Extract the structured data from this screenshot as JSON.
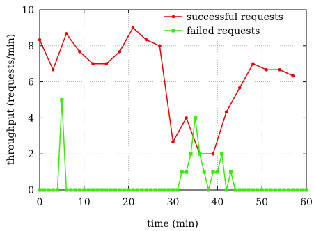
{
  "chart_data": {
    "type": "line",
    "xlabel": "time (min)",
    "ylabel": "throughput (requests/min)",
    "xlim": [
      0,
      60
    ],
    "ylim": [
      0,
      10
    ],
    "xticks": [
      0,
      10,
      20,
      30,
      40,
      50,
      60
    ],
    "yticks": [
      0,
      2,
      4,
      6,
      8,
      10
    ],
    "grid": true,
    "legend_position": "top-right",
    "series": [
      {
        "name": "successful requests",
        "color": "#e60000",
        "marker": "dot",
        "x": [
          0,
          3,
          6,
          9,
          12,
          15,
          18,
          21,
          24,
          27,
          30,
          33,
          36,
          39,
          42,
          45,
          48,
          51,
          54,
          57
        ],
        "y": [
          8.33,
          6.67,
          8.67,
          7.67,
          7.0,
          7.0,
          7.67,
          9.0,
          8.33,
          8.0,
          2.67,
          4.0,
          2.0,
          2.0,
          4.33,
          5.67,
          7.0,
          6.67,
          6.67,
          6.33
        ]
      },
      {
        "name": "failed requests",
        "color": "#33ee00",
        "marker": "square",
        "x": [
          0,
          1,
          2,
          3,
          4,
          5,
          6,
          7,
          8,
          9,
          10,
          11,
          12,
          13,
          14,
          15,
          16,
          17,
          18,
          19,
          20,
          21,
          22,
          23,
          24,
          25,
          26,
          27,
          28,
          29,
          30,
          31,
          32,
          33,
          34,
          35,
          36,
          37,
          38,
          39,
          40,
          41,
          42,
          43,
          44,
          45,
          46,
          47,
          48,
          49,
          50,
          51,
          52,
          53,
          54,
          55,
          56,
          57,
          58,
          59,
          60
        ],
        "y": [
          0,
          0,
          0,
          0,
          0,
          5,
          0,
          0,
          0,
          0,
          0,
          0,
          0,
          0,
          0,
          0,
          0,
          0,
          0,
          0,
          0,
          0,
          0,
          0,
          0,
          0,
          0,
          0,
          0,
          0,
          0,
          0,
          1,
          1,
          2,
          4,
          2,
          1,
          0,
          1,
          1,
          2,
          0,
          1,
          0,
          0,
          0,
          0,
          0,
          0,
          0,
          0,
          0,
          0,
          0,
          0,
          0,
          0,
          0,
          0,
          0
        ]
      }
    ]
  }
}
